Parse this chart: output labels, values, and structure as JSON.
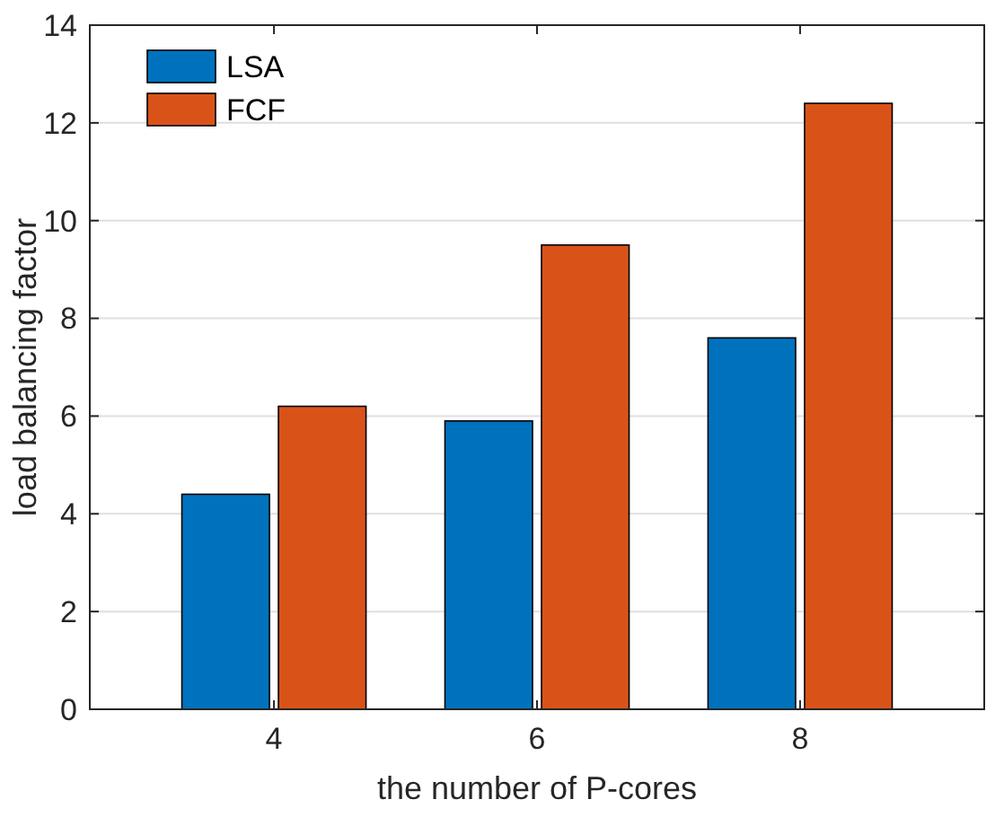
{
  "chart_data": {
    "type": "bar",
    "xlabel": "the number of P-cores",
    "ylabel": "load balancing factor",
    "categories": [
      "4",
      "6",
      "8"
    ],
    "series": [
      {
        "name": "LSA",
        "color": "#0072bd",
        "values": [
          4.4,
          5.9,
          7.6
        ]
      },
      {
        "name": "FCF",
        "color": "#d95319",
        "values": [
          6.2,
          9.5,
          12.4
        ]
      }
    ],
    "ylim": [
      0,
      14
    ],
    "yticks": [
      0,
      2,
      4,
      6,
      8,
      10,
      12,
      14
    ],
    "grid": "y",
    "legend": "top left"
  }
}
